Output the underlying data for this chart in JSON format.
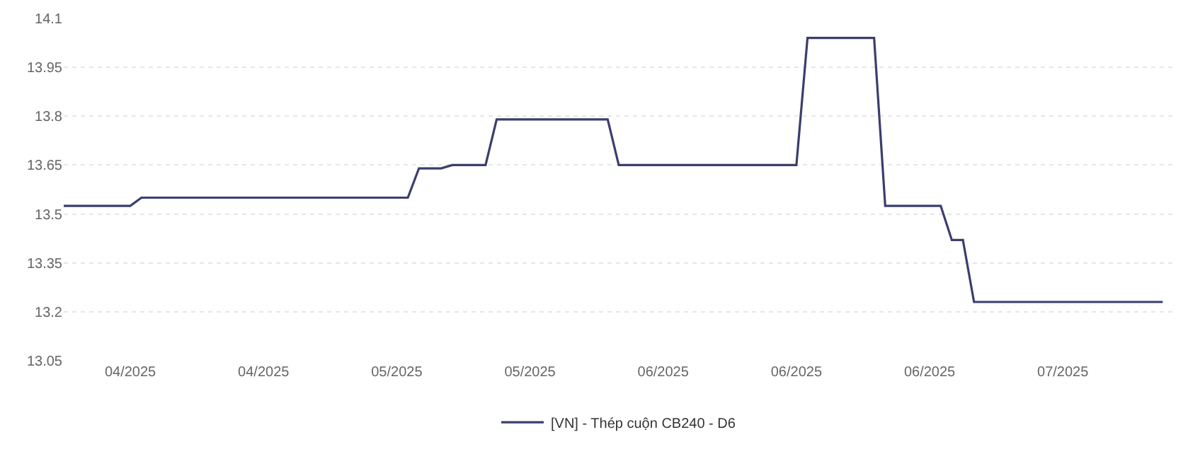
{
  "chart_data": {
    "type": "line",
    "x": [
      "2025-04-12",
      "2025-04-18",
      "2025-04-19",
      "2025-05-13",
      "2025-05-14",
      "2025-05-16",
      "2025-05-17",
      "2025-05-20",
      "2025-05-21",
      "2025-05-31",
      "2025-06-01",
      "2025-06-17",
      "2025-06-18",
      "2025-06-24",
      "2025-06-25",
      "2025-06-30",
      "2025-07-01",
      "2025-07-02",
      "2025-07-03",
      "2025-07-20"
    ],
    "series": [
      {
        "name": "[VN] - Thép cuộn CB240 - D6",
        "color": "#3b3e6e",
        "values": [
          13.525,
          13.525,
          13.55,
          13.55,
          13.64,
          13.64,
          13.65,
          13.65,
          13.79,
          13.79,
          13.65,
          13.65,
          14.04,
          14.04,
          13.525,
          13.525,
          13.42,
          13.42,
          13.23,
          13.23
        ]
      }
    ],
    "xlim": [
      "2025-04-12",
      "2025-07-21"
    ],
    "xticks": [
      {
        "value": "2025-04-18",
        "label": "04/2025"
      },
      {
        "value": "2025-04-30",
        "label": "04/2025"
      },
      {
        "value": "2025-05-12",
        "label": "05/2025"
      },
      {
        "value": "2025-05-24",
        "label": "05/2025"
      },
      {
        "value": "2025-06-05",
        "label": "06/2025"
      },
      {
        "value": "2025-06-17",
        "label": "06/2025"
      },
      {
        "value": "2025-06-29",
        "label": "06/2025"
      },
      {
        "value": "2025-07-11",
        "label": "07/2025"
      }
    ],
    "ylim": [
      13.05,
      14.1
    ],
    "yticks": [
      13.05,
      13.2,
      13.35,
      13.5,
      13.65,
      13.8,
      13.95,
      14.1
    ],
    "grid": "y",
    "legend": "bottom",
    "marker": "none",
    "line_style": "solid"
  }
}
